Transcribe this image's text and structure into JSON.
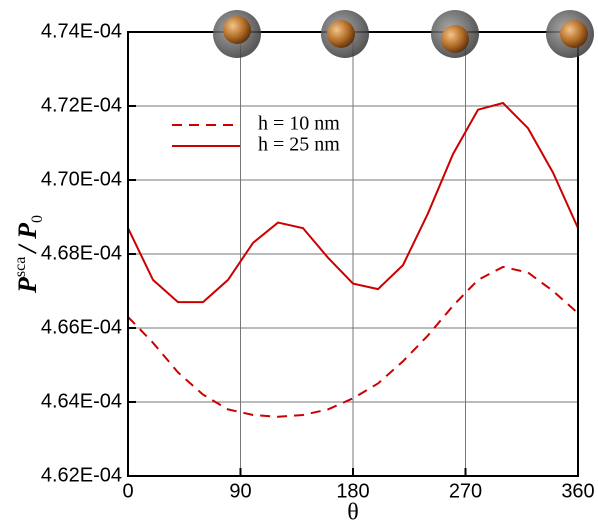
{
  "chart_data": {
    "type": "line",
    "x_label": "θ",
    "y_label_parts": [
      "P",
      "sca",
      "/ P",
      "0"
    ],
    "x": [
      0,
      20,
      40,
      60,
      80,
      100,
      120,
      140,
      160,
      180,
      200,
      220,
      240,
      260,
      280,
      300,
      320,
      340,
      360
    ],
    "series": [
      {
        "name": "h = 10 nm",
        "color": "#cc0000",
        "line_style": "dashed",
        "values": [
          0.0004663,
          0.0004656,
          0.0004648,
          0.0004642,
          0.0004638,
          0.00046365,
          0.0004636,
          0.00046365,
          0.0004638,
          0.0004641,
          0.0004645,
          0.0004651,
          0.0004658,
          0.0004666,
          0.0004673,
          0.00046765,
          0.0004675,
          0.000467,
          0.0004664
        ]
      },
      {
        "name": "h = 25 nm",
        "color": "#cc0000",
        "line_style": "solid",
        "values": [
          0.0004687,
          0.0004673,
          0.0004667,
          0.0004667,
          0.0004673,
          0.0004683,
          0.00046885,
          0.0004687,
          0.0004679,
          0.0004672,
          0.00046705,
          0.0004677,
          0.0004691,
          0.0004707,
          0.0004719,
          0.00047208,
          0.0004714,
          0.0004702,
          0.0004687
        ]
      }
    ],
    "xlim": [
      0,
      360
    ],
    "xticks": [
      0,
      90,
      180,
      270,
      360
    ],
    "ylim": [
      0.000462,
      0.000474
    ],
    "yticks": [
      {
        "value": 0.000462,
        "label": "4.62E-04"
      },
      {
        "value": 0.000464,
        "label": "4.64E-04"
      },
      {
        "value": 0.000466,
        "label": "4.66E-04"
      },
      {
        "value": 0.000468,
        "label": "4.68E-04"
      },
      {
        "value": 0.00047,
        "label": "4.70E-04"
      },
      {
        "value": 0.000472,
        "label": "4.72E-04"
      },
      {
        "value": 0.000474,
        "label": "4.74E-04"
      }
    ],
    "grid": true
  }
}
